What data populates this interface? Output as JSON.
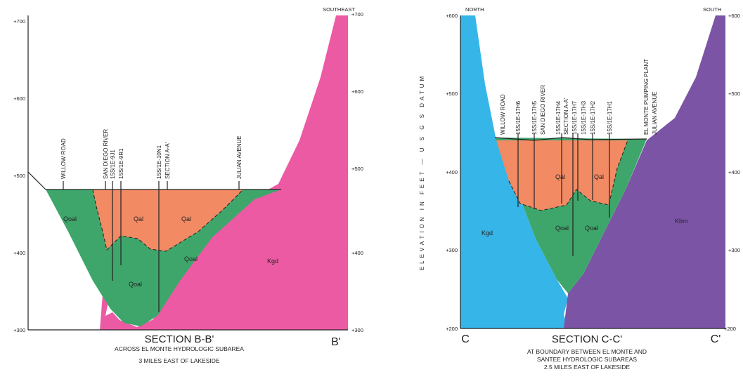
{
  "sections": [
    {
      "title": "SECTION B-B'",
      "subtitle_lines": [
        "ACROSS EL MONTE HYDROLOGIC SUBAREA",
        "3 MILES EAST OF LAKESIDE"
      ],
      "end_label": "B'",
      "direction": "SOUTHEAST",
      "left_elevations": [
        "+700",
        "+600",
        "+500",
        "+400",
        "+300"
      ],
      "right_elevations": [
        "+700",
        "+600",
        "+500",
        "+400",
        "+300"
      ],
      "features": [
        "WILLOW ROAD",
        "SAN DIEGO RIVER",
        "15S/1E-9J1",
        "15S/1E-9R1",
        "15S/1E-10N1",
        "SECTION A-A'",
        "JULIAN AVENUE"
      ],
      "units": [
        "Qoal",
        "Qal",
        "Qal",
        "Qoal",
        "Qoal",
        "Kgd"
      ]
    },
    {
      "title": "SECTION C-C'",
      "subtitle_lines": [
        "AT BOUNDARY BETWEEN EL MONTE AND",
        "SANTEE HYDROLOGIC SUBAREAS",
        "2.5 MILES EAST OF LAKESIDE"
      ],
      "start_label": "C",
      "end_label": "C'",
      "directions": [
        "NORTH",
        "SOUTH"
      ],
      "axis_label": "ELEVATION IN FEET — U S G S DATUM",
      "left_elevations": [
        "+600",
        "+500",
        "+400",
        "+300",
        "+200"
      ],
      "right_elevations": [
        "+600",
        "+500",
        "+400",
        "+300",
        "+200"
      ],
      "features": [
        "WILLOW ROAD",
        "15S/1E-17H6",
        "15S/1E-17H5",
        "SAN DIEGO RIVER",
        "15S/1E-17H4",
        "SECTION A-A'",
        "15S/1E-17H7",
        "15S/1E-17H3",
        "15S/1E-17H2",
        "15S/1E-17H1",
        "EL MONTE PUMPING PLANT",
        "JULIAN AVENUE"
      ],
      "units": [
        "Kgd",
        "Qal",
        "Qal",
        "Qoal",
        "Qoal",
        "Kbm"
      ]
    }
  ]
}
